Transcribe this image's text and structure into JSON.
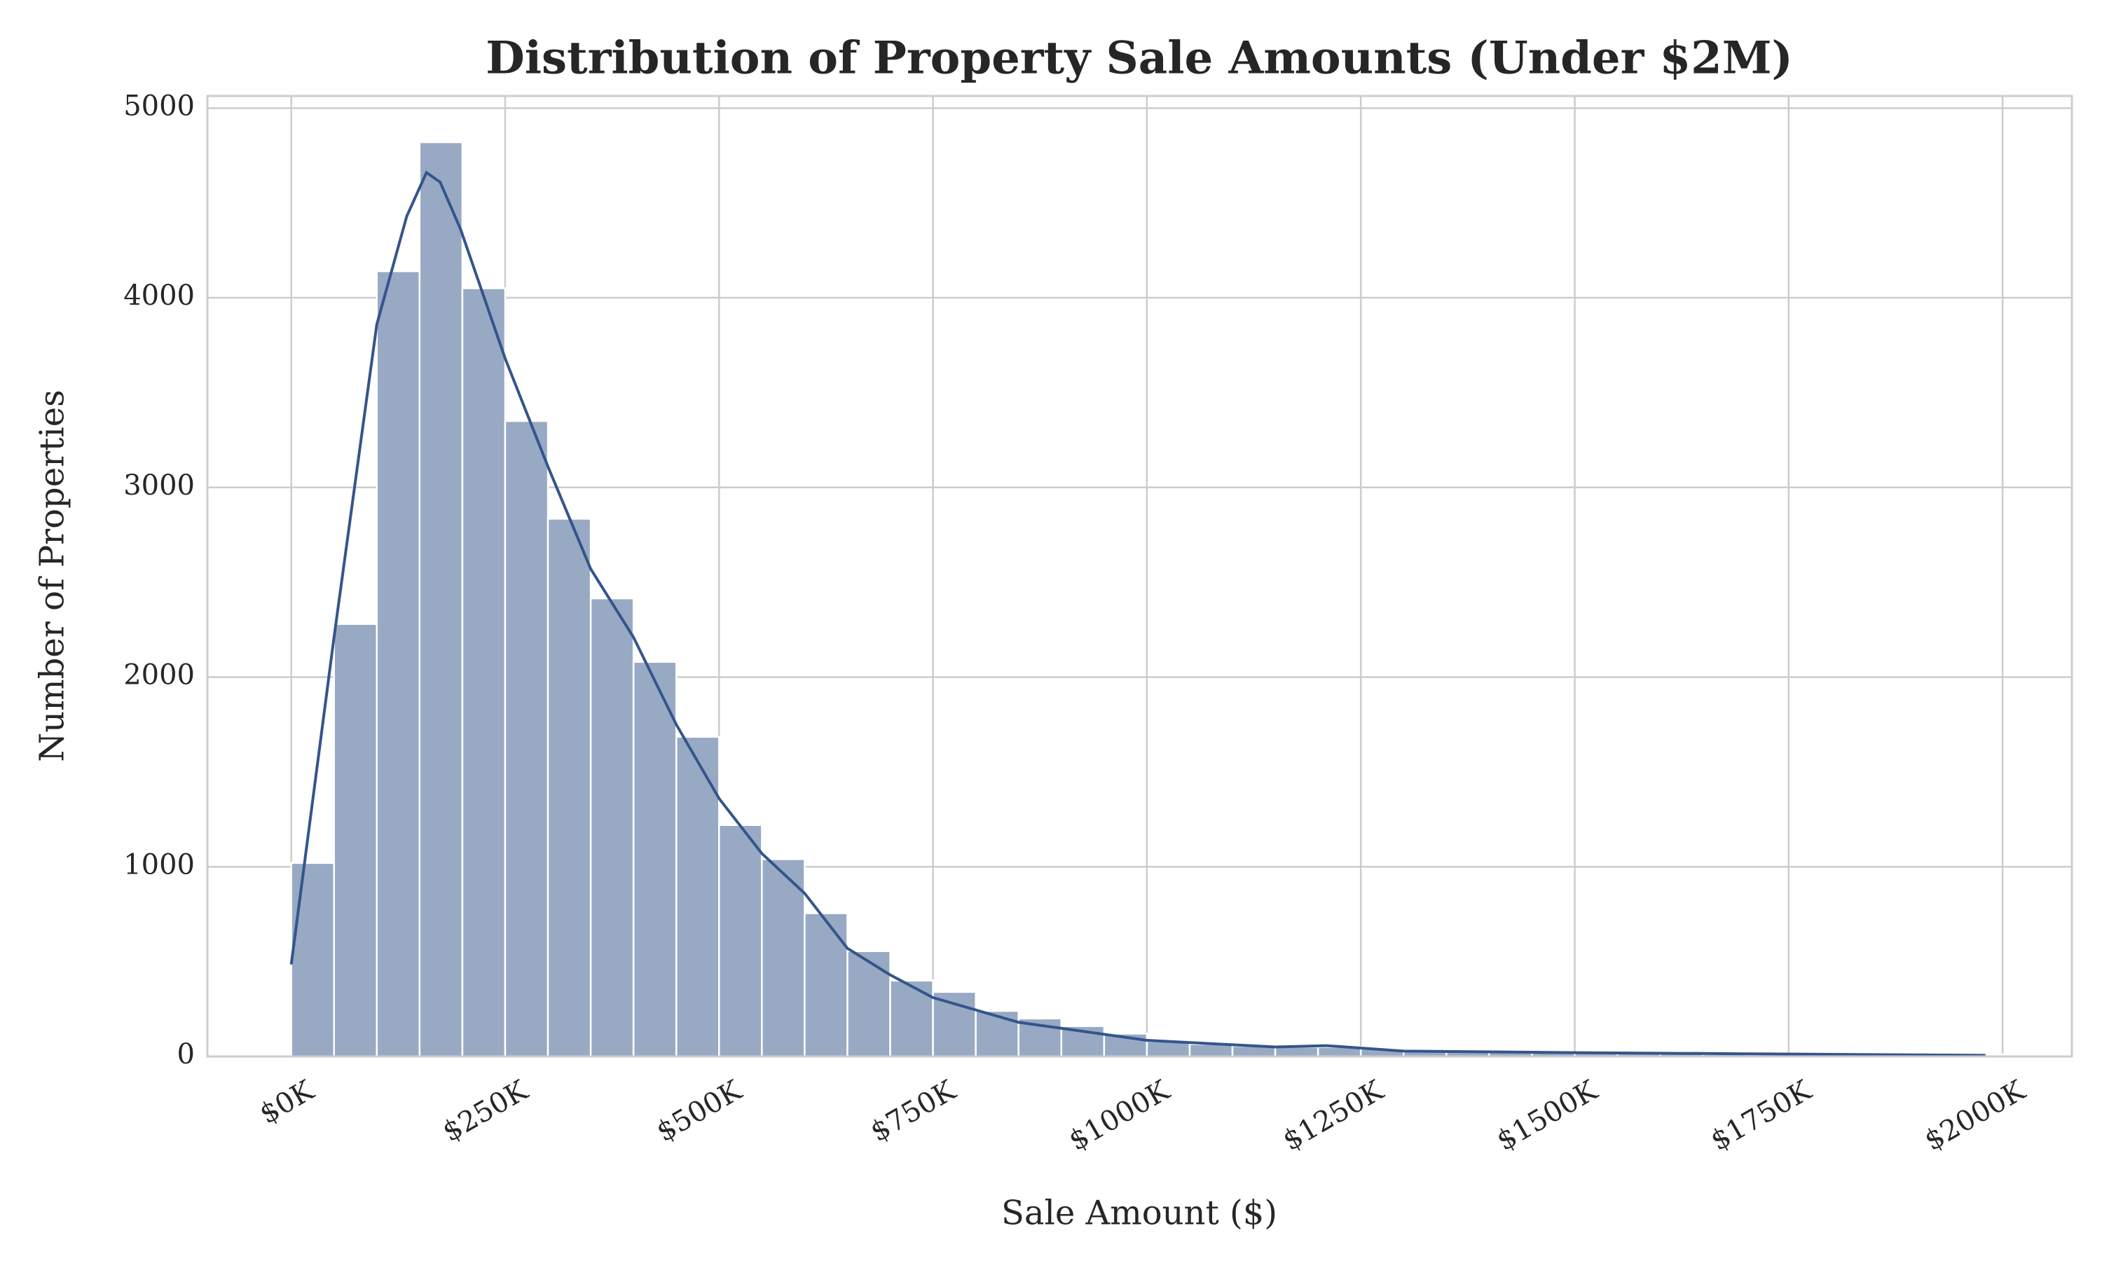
{
  "chart_data": {
    "type": "histogram",
    "title": "Distribution of Property Sale Amounts (Under $2M)",
    "xlabel": "Sale Amount ($)",
    "ylabel": "Number of Properties",
    "bins": [
      0,
      50000,
      100000,
      150000,
      200000,
      250000,
      300000,
      350000,
      400000,
      450000,
      500000,
      550000,
      600000,
      650000,
      700000,
      750000,
      800000,
      850000,
      900000,
      950000,
      1000000,
      1050000,
      1100000,
      1150000,
      1200000,
      1250000,
      1300000,
      1350000,
      1400000,
      1450000,
      1500000,
      1550000,
      1600000,
      1650000,
      1700000,
      1750000,
      1800000,
      1850000,
      1900000,
      1950000,
      2000000
    ],
    "values": [
      1020,
      2280,
      4140,
      4820,
      4050,
      3350,
      2835,
      2415,
      2080,
      1685,
      1220,
      1040,
      755,
      555,
      400,
      340,
      240,
      200,
      160,
      120,
      80,
      65,
      55,
      50,
      50,
      40,
      35,
      28,
      22,
      20,
      18,
      18,
      15,
      12,
      10,
      10,
      12,
      8,
      8,
      10
    ],
    "color": "#98a9c4",
    "kde": {
      "color": "#34558b",
      "x": [
        0,
        50000,
        100000,
        135000,
        158000,
        174000,
        198000,
        250000,
        300000,
        350000,
        400000,
        450000,
        500000,
        550000,
        600000,
        650000,
        700000,
        750000,
        850000,
        1000000,
        1150000,
        1210000,
        1300000,
        1500000,
        1700000,
        1980000
      ],
      "values": [
        485,
        2210,
        3860,
        4430,
        4660,
        4610,
        4360,
        3680,
        3110,
        2570,
        2210,
        1750,
        1360,
        1070,
        860,
        570,
        430,
        310,
        180,
        85,
        50,
        57,
        28,
        20,
        14,
        6
      ]
    },
    "xlim": [
      -98000,
      2081000
    ],
    "xticks": [
      {
        "value": 0,
        "label": "$0K"
      },
      {
        "value": 250000,
        "label": "$250K"
      },
      {
        "value": 500000,
        "label": "$500K"
      },
      {
        "value": 750000,
        "label": "$750K"
      },
      {
        "value": 1000000,
        "label": "$1000K"
      },
      {
        "value": 1250000,
        "label": "$1250K"
      },
      {
        "value": 1500000,
        "label": "$1500K"
      },
      {
        "value": 1750000,
        "label": "$1750K"
      },
      {
        "value": 2000000,
        "label": "$2000K"
      }
    ],
    "ylim": [
      0,
      5064
    ],
    "yticks": [
      0,
      1000,
      2000,
      3000,
      4000,
      5000
    ],
    "grid": true
  }
}
